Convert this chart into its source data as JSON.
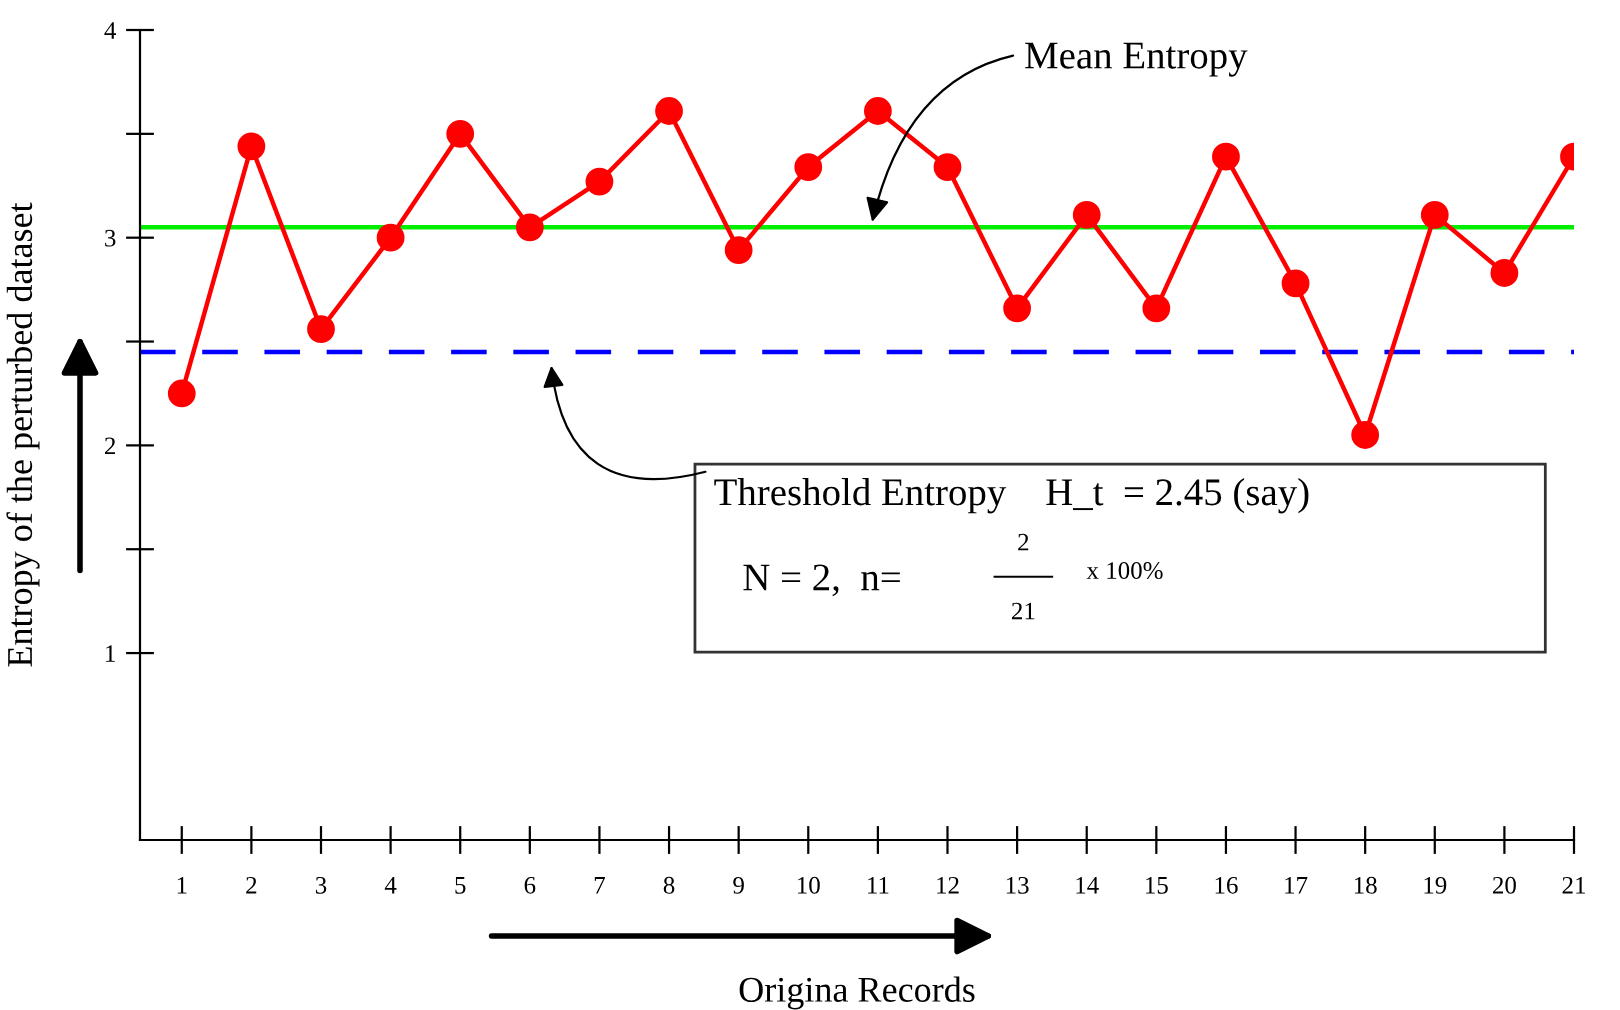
{
  "chart_data": {
    "type": "line",
    "xlabel": "Origina Records",
    "ylabel": "Entropy of the perturbed dataset",
    "x": [
      1,
      2,
      3,
      4,
      5,
      6,
      7,
      8,
      9,
      10,
      11,
      12,
      13,
      14,
      15,
      16,
      17,
      18,
      19,
      20,
      21
    ],
    "series": [
      {
        "color": "#ff0000",
        "values": [
          2.25,
          3.44,
          2.56,
          3.0,
          3.5,
          3.05,
          3.27,
          3.61,
          2.94,
          3.34,
          3.61,
          3.34,
          2.66,
          3.11,
          2.66,
          3.39,
          2.78,
          2.05,
          3.11,
          2.83,
          3.39
        ]
      }
    ],
    "marker": "circle",
    "line_style": "solid",
    "xlim": [
      0.4,
      21
    ],
    "ylim": [
      0.1,
      4
    ],
    "xticks": [
      1,
      2,
      3,
      4,
      5,
      6,
      7,
      8,
      9,
      10,
      11,
      12,
      13,
      14,
      15,
      16,
      17,
      18,
      19,
      20,
      21
    ],
    "yticks": [
      1,
      {
        "value": 1.5,
        "label": null
      },
      2,
      {
        "value": 2.5,
        "label": null
      },
      3,
      {
        "value": 3.5,
        "label": null
      },
      4
    ],
    "ref_lines": [
      {
        "axis": "y",
        "value": 3.05,
        "label": "Mean Entropy",
        "color": "#00ee00",
        "line_style": "solid"
      },
      {
        "axis": "y",
        "value": 2.45,
        "color": "#0000ff",
        "line_style": "dashed"
      }
    ],
    "annotations": [
      "Threshold Entropy    H_t  = 2.45 (say)",
      "N = 2,  n=",
      "2",
      "21",
      "x 100%"
    ],
    "grid": false,
    "legend": false
  }
}
